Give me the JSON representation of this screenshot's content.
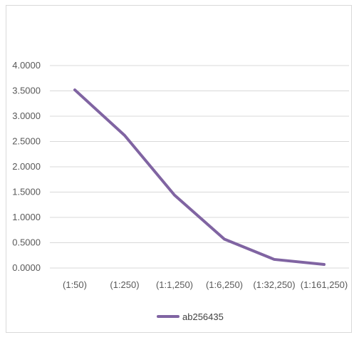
{
  "chart_data": {
    "type": "line",
    "categories": [
      "(1:50)",
      "(1:250)",
      "(1:1,250)",
      "(1:6,250)",
      "(1:32,250)",
      "(1:161,250)"
    ],
    "series": [
      {
        "name": "ab256435",
        "values": [
          3.52,
          2.62,
          1.44,
          0.57,
          0.17,
          0.07
        ],
        "color": "#8064a2"
      }
    ],
    "y_ticks": [
      "0.0000",
      "0.5000",
      "1.0000",
      "1.5000",
      "2.0000",
      "2.5000",
      "3.0000",
      "3.5000",
      "4.0000"
    ],
    "ylim": [
      0,
      4
    ],
    "grid": true,
    "legend_position": "bottom",
    "colors": {
      "gridline": "#d9d9d9",
      "axis_text": "#595959"
    }
  }
}
